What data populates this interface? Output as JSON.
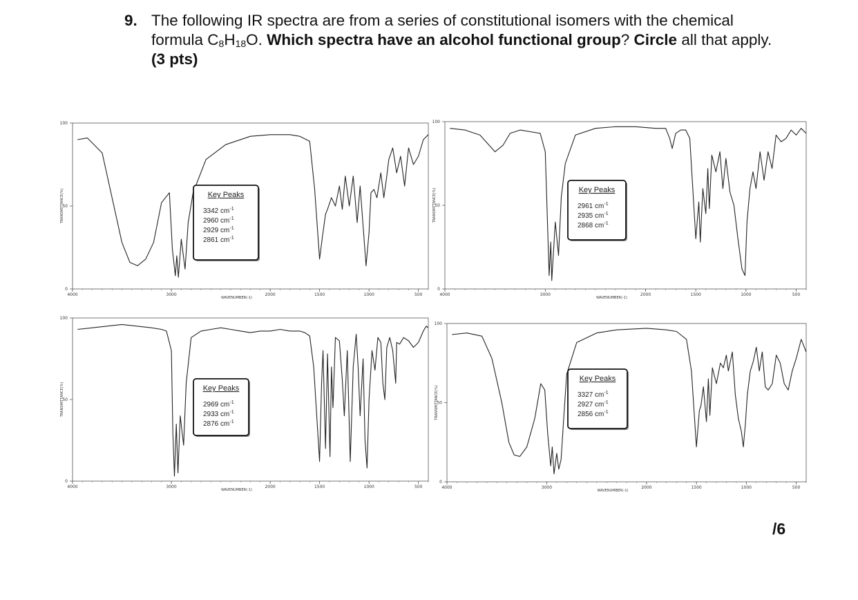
{
  "question": {
    "number": "9.",
    "text_a": "The following IR spectra are from a series of constitutional isomers with the chemical formula C",
    "sub_1": "8",
    "text_b": "H",
    "sub_2": "18",
    "text_c": "O. ",
    "bold_1": "Which spectra have an alcohol functional group",
    "text_d": "? ",
    "bold_2": "Circle",
    "text_e": " all that apply.",
    "points": "(3 pts)"
  },
  "score": "/6",
  "chart_data": [
    {
      "type": "line",
      "x_ticks": [
        4000,
        3000,
        2000,
        1500,
        1000,
        500
      ],
      "y_ticks": [
        0,
        50,
        100
      ],
      "xlim": [
        4000,
        400
      ],
      "ylim": [
        0,
        100
      ],
      "xlabel": "WAVENUMBER(-1)",
      "ylabel": "TRANSMITTANCE(%)",
      "key_peaks": {
        "title": "Key Peaks",
        "peaks": [
          "3342 cm",
          "2960 cm",
          "2929 cm",
          "2861 cm"
        ],
        "unit_sup": "-1"
      },
      "series": [
        {
          "x": [
            3950,
            3850,
            3700,
            3600,
            3500,
            3420,
            3342,
            3260,
            3180,
            3100,
            3020,
            2990,
            2960,
            2945,
            2929,
            2900,
            2861,
            2830,
            2780,
            2650,
            2450,
            2200,
            2000,
            1800,
            1700,
            1600,
            1550,
            1500,
            1470,
            1440,
            1420,
            1380,
            1340,
            1300,
            1270,
            1240,
            1200,
            1160,
            1120,
            1090,
            1060,
            1030,
            1000,
            980,
            950,
            920,
            880,
            850,
            820,
            800,
            760,
            720,
            680,
            640,
            600,
            550,
            500,
            450,
            400
          ],
          "y": [
            90,
            91,
            82,
            55,
            28,
            16,
            14,
            18,
            28,
            52,
            58,
            24,
            8,
            20,
            7,
            30,
            12,
            40,
            58,
            78,
            87,
            92,
            93,
            93,
            92,
            89,
            60,
            18,
            32,
            45,
            48,
            55,
            50,
            62,
            48,
            68,
            50,
            68,
            40,
            62,
            38,
            14,
            34,
            58,
            60,
            55,
            70,
            55,
            68,
            78,
            85,
            70,
            80,
            62,
            85,
            75,
            80,
            90,
            93
          ]
        }
      ]
    },
    {
      "type": "line",
      "x_ticks": [
        4000,
        3000,
        2000,
        1500,
        1000,
        500
      ],
      "y_ticks": [
        0,
        50,
        100
      ],
      "xlim": [
        4000,
        400
      ],
      "ylim": [
        0,
        100
      ],
      "xlabel": "WAVENUMBER(-1)",
      "ylabel": "TRANSMITTANCE(%)",
      "key_peaks": {
        "title": "Key Peaks",
        "peaks": [
          "2961 cm",
          "2935 cm",
          "2868 cm"
        ],
        "unit_sup": "-1"
      },
      "series": [
        {
          "x": [
            3950,
            3800,
            3650,
            3500,
            3420,
            3350,
            3250,
            3150,
            3050,
            3000,
            2961,
            2945,
            2935,
            2900,
            2868,
            2840,
            2800,
            2700,
            2500,
            2300,
            2100,
            1900,
            1800,
            1760,
            1735,
            1700,
            1650,
            1600,
            1560,
            1500,
            1470,
            1455,
            1430,
            1400,
            1380,
            1365,
            1340,
            1300,
            1260,
            1230,
            1200,
            1160,
            1120,
            1080,
            1040,
            1010,
            990,
            960,
            930,
            900,
            860,
            820,
            780,
            740,
            700,
            650,
            600,
            550,
            500,
            450,
            400
          ],
          "y": [
            96,
            95,
            92,
            82,
            86,
            93,
            95,
            94,
            93,
            82,
            8,
            28,
            5,
            40,
            20,
            55,
            75,
            92,
            96,
            97,
            97,
            96,
            96,
            90,
            84,
            93,
            95,
            95,
            90,
            30,
            52,
            28,
            60,
            45,
            72,
            48,
            80,
            70,
            82,
            60,
            78,
            58,
            50,
            30,
            12,
            8,
            40,
            60,
            70,
            60,
            82,
            65,
            82,
            72,
            92,
            88,
            90,
            95,
            92,
            96,
            93
          ]
        }
      ]
    },
    {
      "type": "line",
      "x_ticks": [
        4000,
        3000,
        2000,
        1500,
        1000,
        500
      ],
      "y_ticks": [
        0,
        50,
        100
      ],
      "xlim": [
        4000,
        400
      ],
      "ylim": [
        0,
        100
      ],
      "xlabel": "WAVENUMBER(-1)",
      "ylabel": "TRANSMITTANCE(%)",
      "key_peaks": {
        "title": "Key Peaks",
        "peaks": [
          "2969 cm",
          "2933 cm",
          "2876 cm"
        ],
        "unit_sup": "-1"
      },
      "series": [
        {
          "x": [
            3950,
            3800,
            3650,
            3500,
            3350,
            3200,
            3100,
            3050,
            3000,
            2985,
            2969,
            2950,
            2933,
            2910,
            2876,
            2850,
            2800,
            2700,
            2600,
            2500,
            2400,
            2300,
            2200,
            2100,
            2000,
            1900,
            1800,
            1700,
            1650,
            1600,
            1560,
            1500,
            1480,
            1465,
            1440,
            1420,
            1395,
            1380,
            1365,
            1340,
            1300,
            1270,
            1250,
            1220,
            1190,
            1160,
            1130,
            1110,
            1090,
            1060,
            1040,
            1020,
            1000,
            970,
            940,
            910,
            880,
            860,
            840,
            820,
            790,
            760,
            730,
            720,
            690,
            650,
            600,
            550,
            500,
            450,
            420,
            400
          ],
          "y": [
            93,
            94,
            95,
            96,
            95,
            94,
            93,
            92,
            80,
            30,
            3,
            35,
            5,
            40,
            22,
            60,
            88,
            92,
            93,
            94,
            93,
            92,
            91,
            92,
            92,
            93,
            92,
            92,
            91,
            89,
            70,
            12,
            60,
            80,
            20,
            78,
            15,
            70,
            45,
            88,
            86,
            62,
            40,
            80,
            12,
            70,
            90,
            70,
            40,
            75,
            25,
            8,
            50,
            80,
            68,
            88,
            85,
            60,
            50,
            82,
            88,
            80,
            60,
            85,
            84,
            88,
            86,
            82,
            85,
            92,
            95,
            94
          ]
        }
      ]
    },
    {
      "type": "line",
      "x_ticks": [
        4000,
        3000,
        2000,
        1500,
        1000,
        500
      ],
      "y_ticks": [
        0,
        50,
        100
      ],
      "xlim": [
        4000,
        400
      ],
      "ylim": [
        0,
        100
      ],
      "xlabel": "WAVENUMBER(-1)",
      "ylabel": "TRANSMITTANCE(%)",
      "key_peaks": {
        "title": "Key Peaks",
        "peaks": [
          "3327 cm",
          "2927 cm",
          "2856 cm"
        ],
        "unit_sup": "-1"
      },
      "series": [
        {
          "x": [
            3950,
            3800,
            3650,
            3550,
            3450,
            3380,
            3327,
            3270,
            3200,
            3120,
            3060,
            3020,
            2990,
            2960,
            2945,
            2927,
            2900,
            2880,
            2856,
            2830,
            2800,
            2700,
            2500,
            2300,
            2000,
            1800,
            1700,
            1600,
            1550,
            1500,
            1470,
            1455,
            1430,
            1400,
            1380,
            1365,
            1340,
            1300,
            1260,
            1230,
            1200,
            1180,
            1140,
            1110,
            1080,
            1050,
            1030,
            1010,
            990,
            960,
            930,
            900,
            870,
            840,
            810,
            780,
            740,
            700,
            660,
            620,
            580,
            540,
            500,
            450,
            400
          ],
          "y": [
            93,
            94,
            92,
            78,
            50,
            25,
            17,
            16,
            22,
            40,
            62,
            58,
            30,
            10,
            22,
            5,
            18,
            8,
            14,
            40,
            68,
            88,
            94,
            96,
            97,
            96,
            95,
            90,
            70,
            22,
            45,
            48,
            60,
            38,
            65,
            42,
            72,
            62,
            75,
            72,
            80,
            70,
            82,
            55,
            40,
            32,
            22,
            36,
            55,
            70,
            76,
            85,
            70,
            82,
            60,
            58,
            62,
            80,
            75,
            62,
            58,
            70,
            78,
            90,
            82
          ]
        }
      ]
    }
  ]
}
